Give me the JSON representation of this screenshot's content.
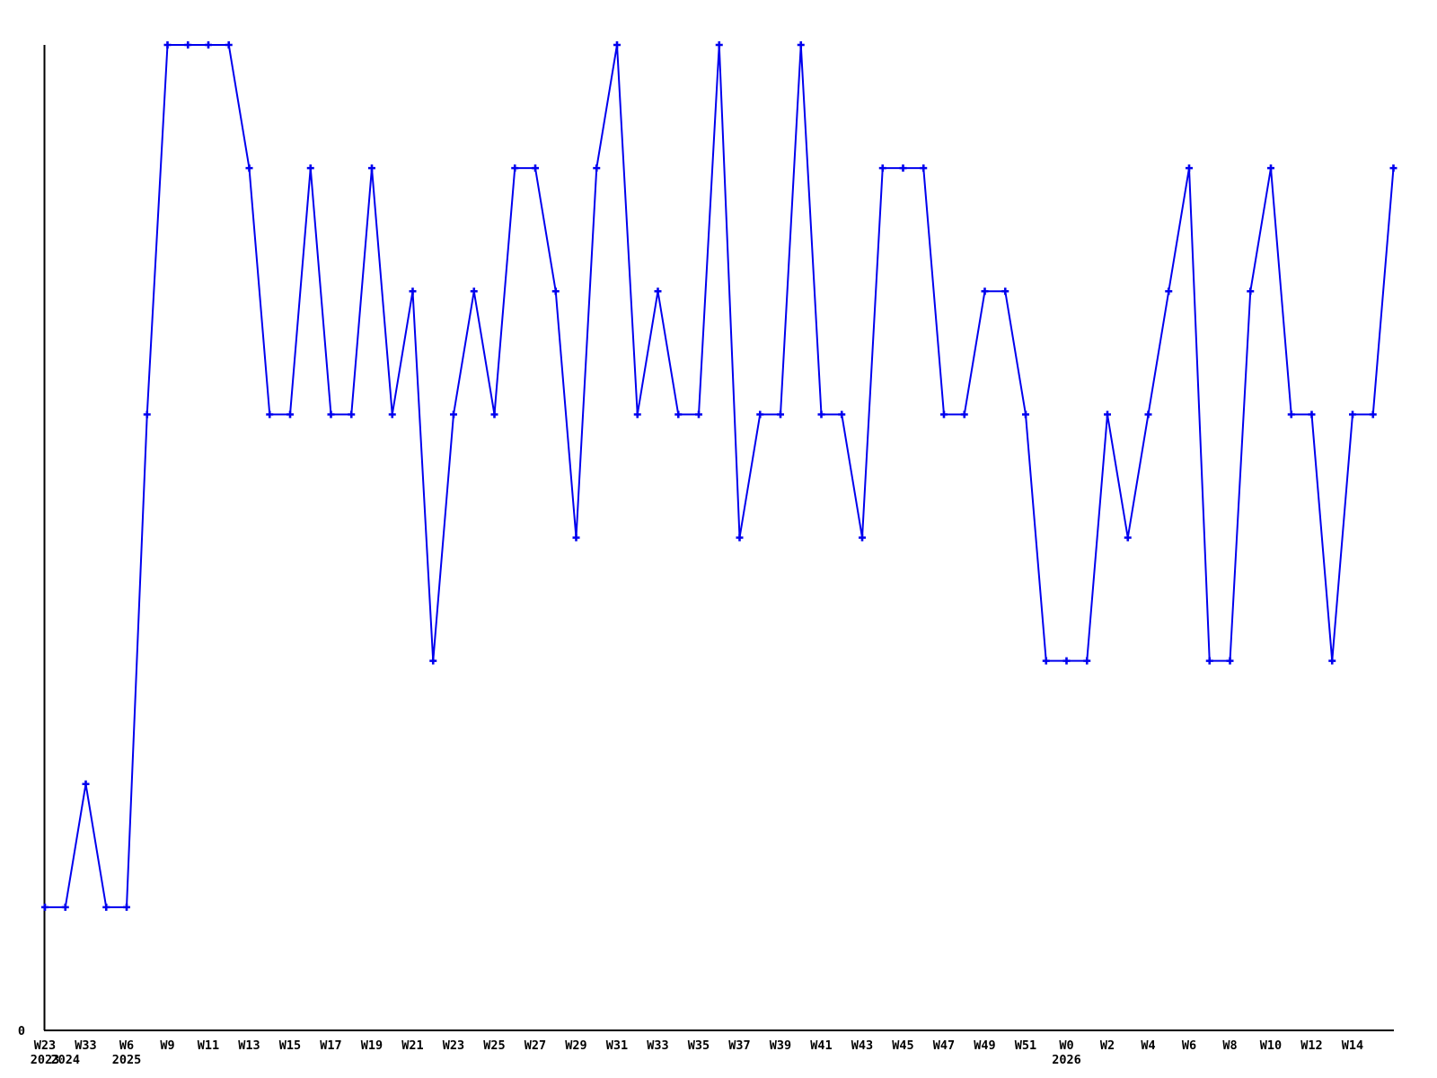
{
  "chart_data": {
    "type": "line",
    "description": "weekly-activity-line-chart",
    "x_unit": "week",
    "values": [
      1,
      1,
      2,
      1,
      1,
      5,
      8,
      8,
      8,
      8,
      7,
      5,
      5,
      7,
      5,
      5,
      7,
      5,
      6,
      3,
      5,
      6,
      5,
      7,
      7,
      6,
      4,
      7,
      8,
      5,
      6,
      5,
      5,
      8,
      4,
      5,
      5,
      8,
      5,
      5,
      4,
      7,
      7,
      7,
      5,
      5,
      6,
      6,
      5,
      3,
      3,
      3,
      5,
      4,
      5,
      6,
      7,
      3,
      3,
      6,
      7,
      5,
      5,
      3,
      5,
      5,
      7
    ],
    "n_points": 67,
    "week_ticks": [
      {
        "index": 0,
        "label": "W23"
      },
      {
        "index": 2,
        "label": "W33"
      },
      {
        "index": 4,
        "label": "W6"
      },
      {
        "index": 6,
        "label": "W9"
      },
      {
        "index": 8,
        "label": "W11"
      },
      {
        "index": 10,
        "label": "W13"
      },
      {
        "index": 12,
        "label": "W15"
      },
      {
        "index": 14,
        "label": "W17"
      },
      {
        "index": 16,
        "label": "W19"
      },
      {
        "index": 18,
        "label": "W21"
      },
      {
        "index": 20,
        "label": "W23"
      },
      {
        "index": 22,
        "label": "W25"
      },
      {
        "index": 24,
        "label": "W27"
      },
      {
        "index": 26,
        "label": "W29"
      },
      {
        "index": 28,
        "label": "W31"
      },
      {
        "index": 30,
        "label": "W33"
      },
      {
        "index": 32,
        "label": "W35"
      },
      {
        "index": 34,
        "label": "W37"
      },
      {
        "index": 36,
        "label": "W39"
      },
      {
        "index": 38,
        "label": "W41"
      },
      {
        "index": 40,
        "label": "W43"
      },
      {
        "index": 42,
        "label": "W45"
      },
      {
        "index": 44,
        "label": "W47"
      },
      {
        "index": 46,
        "label": "W49"
      },
      {
        "index": 48,
        "label": "W51"
      },
      {
        "index": 50,
        "label": "W0"
      },
      {
        "index": 52,
        "label": "W2"
      },
      {
        "index": 54,
        "label": "W4"
      },
      {
        "index": 56,
        "label": "W6"
      },
      {
        "index": 58,
        "label": "W8"
      },
      {
        "index": 60,
        "label": "W10"
      },
      {
        "index": 62,
        "label": "W12"
      },
      {
        "index": 64,
        "label": "W14"
      }
    ],
    "year_ticks": [
      {
        "index": 0,
        "label": "2023"
      },
      {
        "index": 1,
        "label": "2024"
      },
      {
        "index": 4,
        "label": "2025"
      },
      {
        "index": 50,
        "label": "2026"
      }
    ],
    "y_axis": {
      "zero_label": "0",
      "min": 0,
      "max": 8,
      "other_labels": []
    },
    "legend": null,
    "grid": false,
    "marker": "plus",
    "colors": {
      "line": "#0000ee",
      "marker": "#0000ee",
      "axis": "#000000",
      "text": "#000000",
      "background": "#ffffff"
    }
  }
}
